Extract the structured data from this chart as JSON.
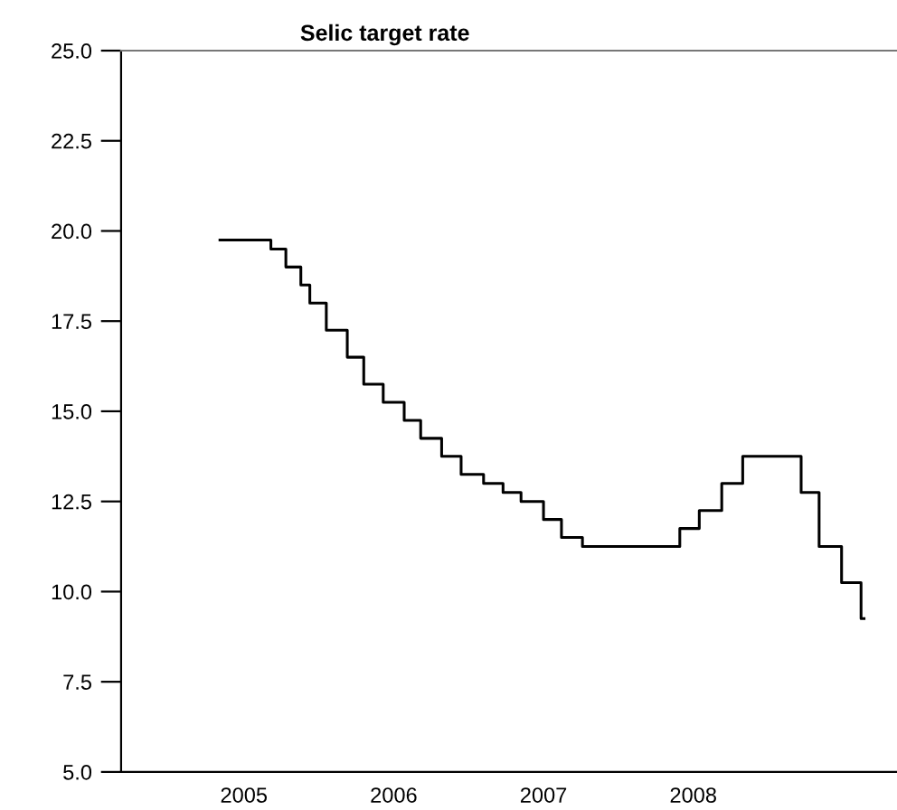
{
  "chart_data": {
    "type": "step",
    "title": "Selic target rate",
    "x": [
      2005.34,
      2005.68,
      2005.78,
      2005.88,
      2005.94,
      2006.05,
      2006.19,
      2006.3,
      2006.43,
      2006.57,
      2006.68,
      2006.82,
      2006.95,
      2007.1,
      2007.23,
      2007.35,
      2007.5,
      2007.62,
      2007.76,
      2008.41,
      2008.54,
      2008.69,
      2008.83,
      2009.22,
      2009.34,
      2009.49,
      2009.62,
      2009.64
    ],
    "series": [
      {
        "color": "#000000",
        "values": [
          19.75,
          19.5,
          19.0,
          18.5,
          18.0,
          17.25,
          16.5,
          15.75,
          15.25,
          14.75,
          14.25,
          13.75,
          13.25,
          13.0,
          12.75,
          12.5,
          12.0,
          11.5,
          11.25,
          11.75,
          12.25,
          13.0,
          13.75,
          12.75,
          11.25,
          10.25,
          9.25,
          9.25
        ]
      }
    ],
    "xlim": [
      2004.68,
      2009.86
    ],
    "xticks": [
      {
        "value": 2005.5,
        "label": "2005"
      },
      {
        "value": 2006.5,
        "label": "2006"
      },
      {
        "value": 2007.5,
        "label": "2007"
      },
      {
        "value": 2008.5,
        "label": "2008"
      }
    ],
    "ylim": [
      5.0,
      25.0
    ],
    "yticks": [
      {
        "value": 5.0,
        "label": "5.0"
      },
      {
        "value": 7.5,
        "label": "7.5"
      },
      {
        "value": 10.0,
        "label": "10.0"
      },
      {
        "value": 12.5,
        "label": "12.5"
      },
      {
        "value": 15.0,
        "label": "15.0"
      },
      {
        "value": 17.5,
        "label": "17.5"
      },
      {
        "value": 20.0,
        "label": "20.0"
      },
      {
        "value": 22.5,
        "label": "22.5"
      },
      {
        "value": 25.0,
        "label": "25.0"
      }
    ],
    "grid": false
  }
}
